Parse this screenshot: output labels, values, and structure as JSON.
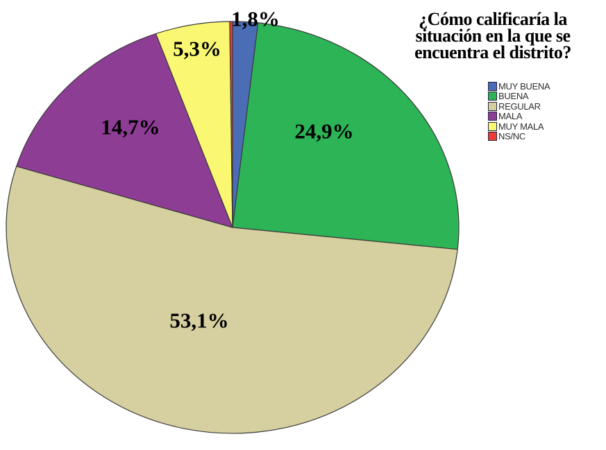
{
  "chart_data": {
    "type": "pie",
    "title": "¿Cómo calificaría la situación en la que se encuentra el distrito?",
    "title_lines": [
      "¿Cómo calificaría la",
      "situación en la que se",
      "encuentra el distrito?"
    ],
    "start_angle_deg": 0,
    "direction": "clockwise",
    "legend_position": "right",
    "slices": [
      {
        "label": "MUY BUENA",
        "value_pct": 1.8,
        "display": "1,8%",
        "color": "#4A6DB5"
      },
      {
        "label": "BUENA",
        "value_pct": 24.9,
        "display": "24,9%",
        "color": "#2DB457"
      },
      {
        "label": "REGULAR",
        "value_pct": 53.1,
        "display": "53,1%",
        "color": "#D6CF9F"
      },
      {
        "label": "MALA",
        "value_pct": 14.7,
        "display": "14,7%",
        "color": "#8E3D94"
      },
      {
        "label": "MUY MALA",
        "value_pct": 5.3,
        "display": "5,3%",
        "color": "#FAF873"
      },
      {
        "label": "NS/NC",
        "value_pct": 0.2,
        "display": "",
        "color": "#EE3B33"
      }
    ]
  },
  "colors": {
    "background": "#FFFFFF",
    "slice_border": "#3A3A3A",
    "label_text": "#000000",
    "legend_text": "#2E2E2E"
  }
}
